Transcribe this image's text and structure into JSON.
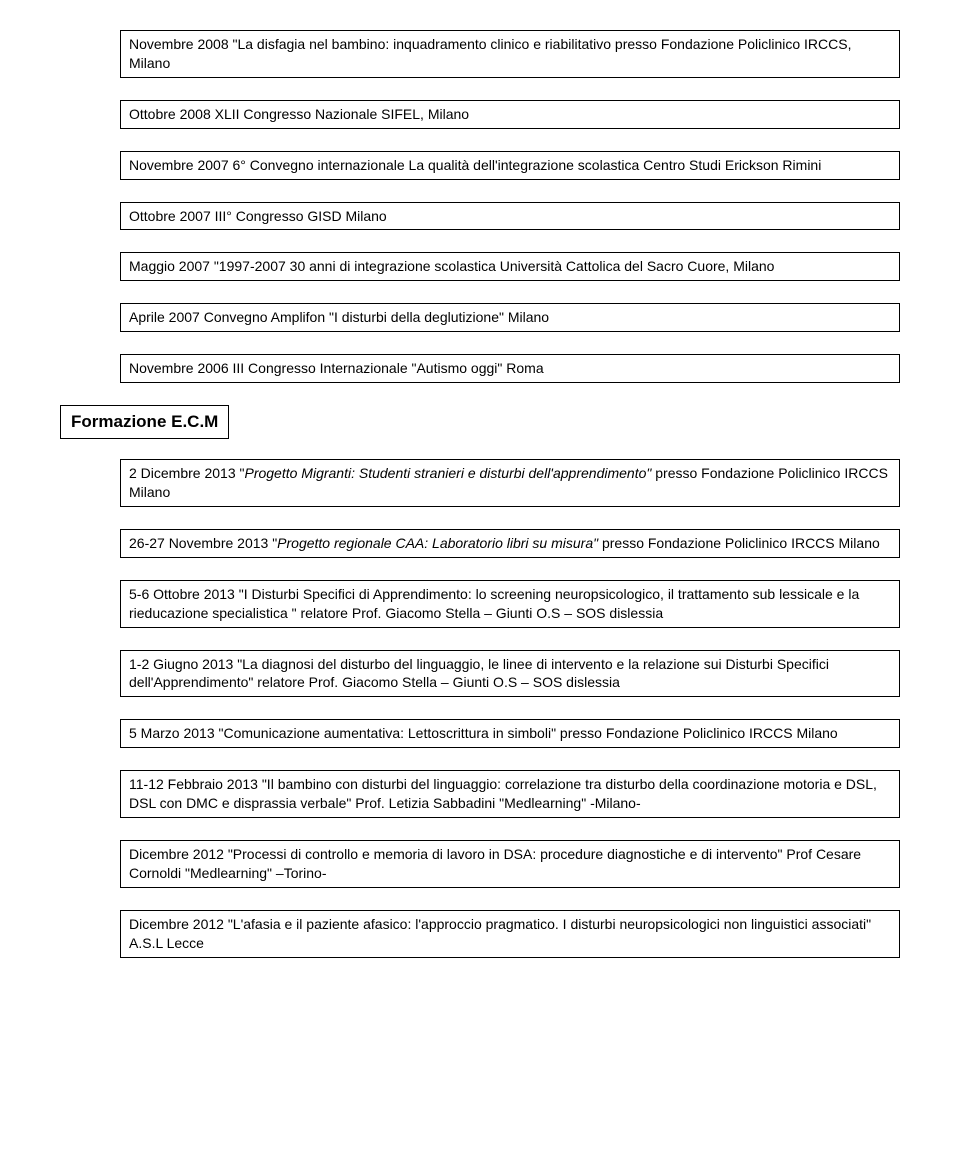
{
  "entriesTop": [
    "Novembre 2008 \"La disfagia nel bambino: inquadramento clinico e riabilitativo presso Fondazione Policlinico IRCCS, Milano",
    "Ottobre 2008 XLII Congresso Nazionale SIFEL, Milano",
    "Novembre 2007 6° Convegno internazionale La qualità dell'integrazione scolastica Centro Studi Erickson Rimini",
    "Ottobre 2007 III° Congresso GISD Milano",
    "Maggio 2007 \"1997-2007 30 anni di integrazione scolastica Università Cattolica del Sacro Cuore, Milano",
    "Aprile 2007 Convegno Amplifon \"I disturbi della deglutizione\" Milano",
    "Novembre 2006 III Congresso Internazionale \"Autismo oggi\" Roma"
  ],
  "sectionTitle": "Formazione E.C.M",
  "entriesECM": [
    {
      "parts": [
        {
          "text": "2 Dicembre 2013 \"",
          "italic": false
        },
        {
          "text": "Progetto Migranti: Studenti stranieri e disturbi dell'apprendimento\"",
          "italic": true
        },
        {
          "text": " presso Fondazione Policlinico IRCCS Milano",
          "italic": false
        }
      ]
    },
    {
      "parts": [
        {
          "text": "26-27 Novembre 2013 \"",
          "italic": false
        },
        {
          "text": "Progetto regionale CAA: Laboratorio libri su misura\"",
          "italic": true
        },
        {
          "text": " presso Fondazione Policlinico IRCCS Milano",
          "italic": false
        }
      ]
    },
    {
      "parts": [
        {
          "text": "5-6 Ottobre 2013 \"I Disturbi Specifici di Apprendimento: lo screening neuropsicologico, il trattamento sub lessicale e la rieducazione specialistica \" relatore Prof. Giacomo Stella – Giunti O.S – SOS dislessia",
          "italic": false
        }
      ]
    },
    {
      "parts": [
        {
          "text": "1-2 Giugno 2013 \"La diagnosi del disturbo del linguaggio, le linee di intervento e la relazione sui Disturbi Specifici dell'Apprendimento\" relatore Prof. Giacomo Stella – Giunti O.S – SOS dislessia",
          "italic": false
        }
      ]
    },
    {
      "parts": [
        {
          "text": "5 Marzo 2013 \"Comunicazione aumentativa: Lettoscrittura in simboli\" presso Fondazione Policlinico IRCCS Milano",
          "italic": false
        }
      ]
    },
    {
      "parts": [
        {
          "text": "11-12 Febbraio 2013 \"Il bambino con disturbi del linguaggio: correlazione tra disturbo della coordinazione motoria e DSL, DSL con DMC e disprassia verbale\" Prof. Letizia Sabbadini \"Medlearning\" -Milano-",
          "italic": false
        }
      ]
    },
    {
      "parts": [
        {
          "text": "Dicembre 2012 \"Processi di controllo e memoria di lavoro in DSA: procedure diagnostiche e di intervento\" Prof Cesare Cornoldi \"Medlearning\" –Torino-",
          "italic": false
        }
      ]
    },
    {
      "parts": [
        {
          "text": "Dicembre 2012 \"L'afasia e il paziente afasico: l'approccio pragmatico. I disturbi neuropsicologici non linguistici associati\"  A.S.L Lecce",
          "italic": false
        }
      ]
    }
  ]
}
